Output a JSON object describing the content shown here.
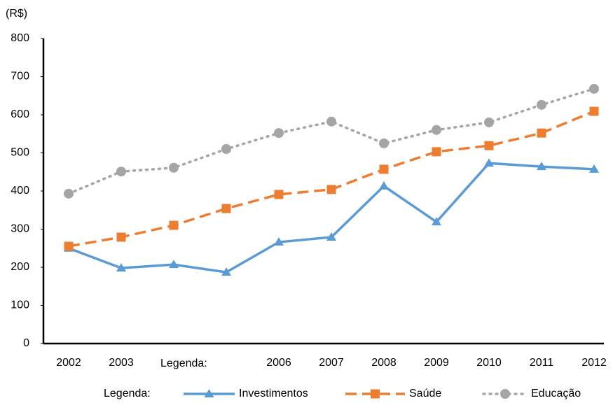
{
  "chart_data": {
    "type": "line",
    "unit_label": "(R$)",
    "categories": [
      "2002",
      "2003",
      null,
      null,
      "2006",
      "2007",
      "2008",
      "2009",
      "2010",
      "2011",
      "2012"
    ],
    "annotation": "Legenda:",
    "legend_title": "Legenda:",
    "series": [
      {
        "name": "Investimentos",
        "color": "#5b9bd5",
        "style": "solid",
        "marker": "triangle",
        "values": [
          250,
          198,
          207,
          187,
          266,
          279,
          413,
          319,
          473,
          464,
          457
        ]
      },
      {
        "name": "Saúde",
        "color": "#ed7d31",
        "style": "dashed",
        "marker": "square",
        "values": [
          255,
          279,
          310,
          354,
          391,
          404,
          457,
          503,
          519,
          552,
          609
        ]
      },
      {
        "name": "Educação",
        "color": "#a5a5a5",
        "style": "dotted",
        "marker": "circle",
        "values": [
          393,
          451,
          461,
          510,
          552,
          582,
          525,
          560,
          580,
          626,
          668
        ]
      }
    ],
    "ylim": [
      0,
      800
    ],
    "yticks": [
      0,
      100,
      200,
      300,
      400,
      500,
      600,
      700,
      800
    ],
    "grid": false
  }
}
